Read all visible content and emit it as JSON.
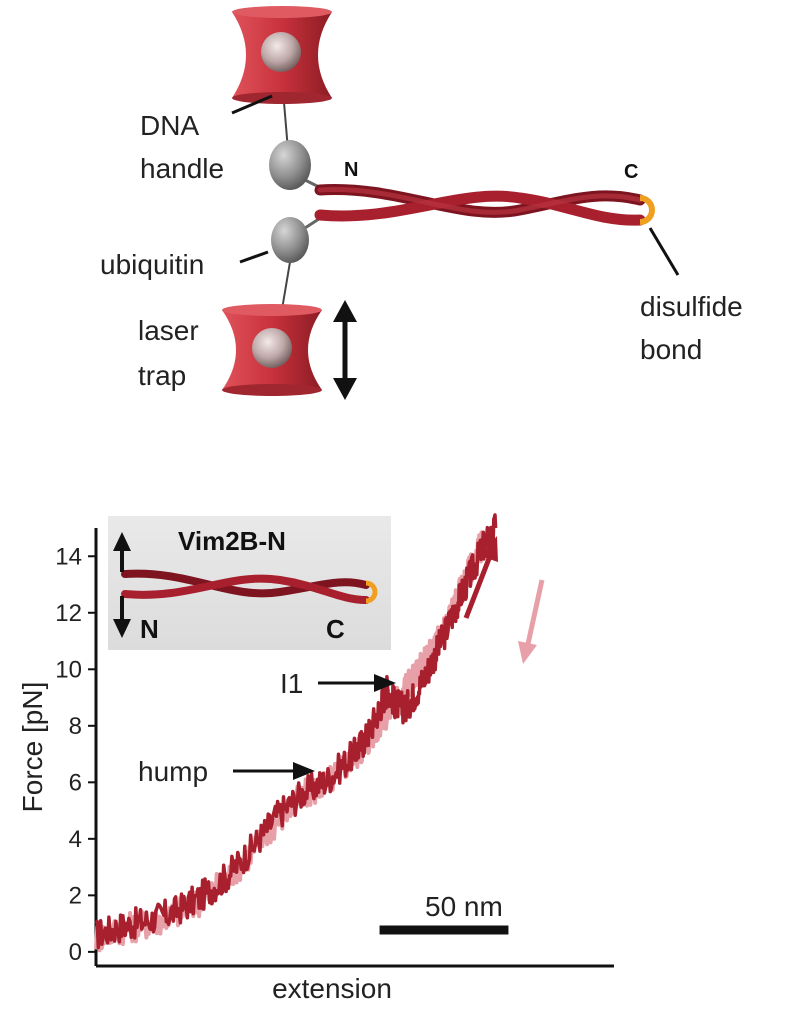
{
  "schematic": {
    "labels": {
      "dna_handle_line1": "DNA",
      "dna_handle_line2": "handle",
      "ubiquitin": "ubiquitin",
      "laser_line1": "laser",
      "laser_line2": "trap",
      "n_term": "N",
      "c_term": "C",
      "disulfide_line1": "disulfide",
      "disulfide_line2": "bond"
    },
    "colors": {
      "coil": "#a8202e",
      "coil_dark": "#7d1420",
      "trap": "#c8323c",
      "bead": "#bfa9a9",
      "ubiquitin": "#8e8e8e",
      "disulfide": "#f0a020"
    }
  },
  "chart_data": {
    "type": "line",
    "ylabel": "Force [pN]",
    "xlabel": "extension",
    "ylim": [
      -0.5,
      15
    ],
    "yticks": [
      0,
      2,
      4,
      6,
      8,
      10,
      12,
      14
    ],
    "xlim": [
      0,
      180
    ],
    "scale_bar": {
      "label": "50 nm",
      "length": 50,
      "x_start": 110
    },
    "inset": {
      "title": "Vim2B-N",
      "n_label": "N",
      "c_label": "C"
    },
    "annotations": [
      {
        "text": "I1",
        "x": 116,
        "y": 9.3
      },
      {
        "text": "hump",
        "x": 72,
        "y": 6.0
      }
    ],
    "series": [
      {
        "role": "stretch",
        "color": "#a8202e",
        "x": [
          0,
          10,
          20,
          30,
          40,
          50,
          60,
          70,
          80,
          90,
          100,
          105,
          110,
          113,
          116,
          120,
          125,
          130,
          135,
          140,
          145,
          150,
          155
        ],
        "y": [
          0.6,
          0.9,
          1.1,
          1.4,
          1.9,
          2.6,
          3.6,
          4.8,
          5.6,
          6.1,
          7.0,
          7.6,
          8.6,
          9.3,
          8.8,
          8.6,
          9.3,
          10.2,
          11.2,
          12.3,
          13.3,
          14.3,
          15.0
        ]
      },
      {
        "role": "relax",
        "color": "#e8a0a8",
        "x": [
          0,
          10,
          20,
          30,
          40,
          50,
          60,
          70,
          80,
          90,
          100,
          105,
          110,
          115,
          120,
          125,
          130,
          135,
          140,
          145,
          150
        ],
        "y": [
          0.5,
          0.8,
          1.0,
          1.3,
          1.8,
          2.5,
          3.5,
          4.6,
          5.5,
          6.0,
          6.9,
          7.4,
          8.1,
          8.7,
          9.4,
          9.9,
          10.6,
          11.5,
          12.5,
          13.5,
          14.5
        ]
      }
    ]
  }
}
